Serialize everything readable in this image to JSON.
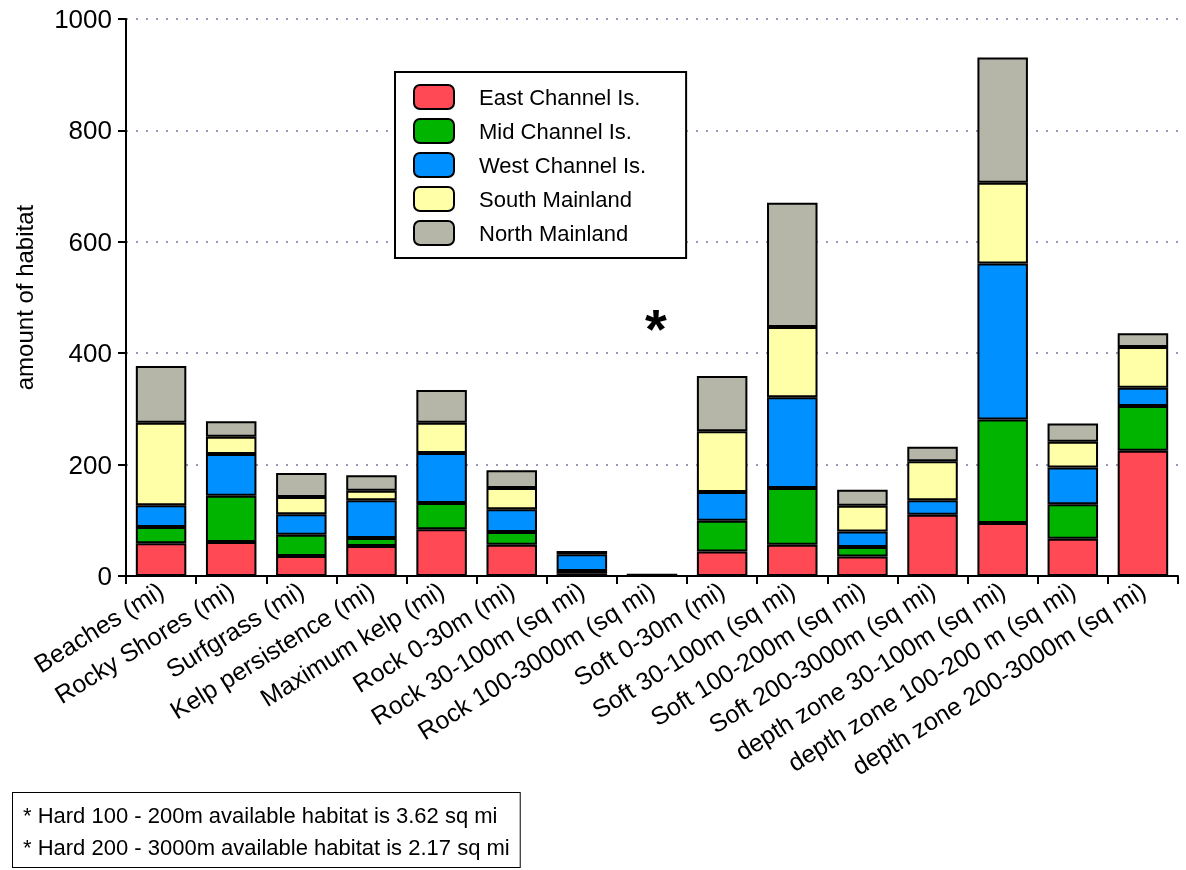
{
  "chart_data": {
    "type": "bar",
    "stacked": true,
    "ylabel": "amount of habitat",
    "categories": [
      "Beaches (mi)",
      "Rocky Shores (mi)",
      "Surfgrass (mi)",
      "Kelp persistence (mi)",
      "Maximum kelp (mi)",
      "Rock 0-30m (mi)",
      "Rock 30-100m (sq mi)",
      "Rock 100-3000m (sq mi)",
      "Soft 0-30m (mi)",
      "Soft 30-100m (sq mi)",
      "Soft 100-200m (sq mi)",
      "Soft 200-3000m (sq mi)",
      "depth zone 30-100m (sq mi)",
      "depth zone 100-200 m (sq mi)",
      "depth zone 200-3000m (sq mi)"
    ],
    "series": [
      {
        "name": "East Channel Is.",
        "color": "#ff4a55",
        "values": [
          59,
          61,
          36,
          54,
          84,
          56,
          5,
          4,
          44,
          56,
          35,
          110,
          95,
          67,
          225
        ]
      },
      {
        "name": "Mid Channel Is.",
        "color": "#00b400",
        "values": [
          29,
          83,
          38,
          14,
          47,
          23,
          4,
          0,
          55,
          102,
          17,
          0,
          186,
          62,
          80
        ]
      },
      {
        "name": "West Channel Is.",
        "color": "#0090ff",
        "values": [
          39,
          75,
          37,
          68,
          90,
          41,
          30,
          0,
          52,
          163,
          28,
          26,
          280,
          66,
          33
        ]
      },
      {
        "name": "South Mainland",
        "color": "#ffffa8",
        "values": [
          148,
          31,
          31,
          17,
          54,
          38,
          0,
          0,
          109,
          126,
          46,
          70,
          145,
          46,
          73
        ]
      },
      {
        "name": "North Mainland",
        "color": "#b5b5a8",
        "values": [
          102,
          28,
          43,
          28,
          59,
          32,
          6,
          0,
          99,
          223,
          29,
          26,
          225,
          33,
          25
        ]
      }
    ],
    "ylim": [
      0,
      1000
    ],
    "yticks": [
      0,
      200,
      400,
      600,
      800,
      1000
    ],
    "grid": "y",
    "legend": "top",
    "annotations": [
      "*",
      "* Hard 100 - 200m available habitat is 3.62 sq mi",
      "* Hard 200 - 3000m available habitat is 2.17 sq mi"
    ]
  }
}
